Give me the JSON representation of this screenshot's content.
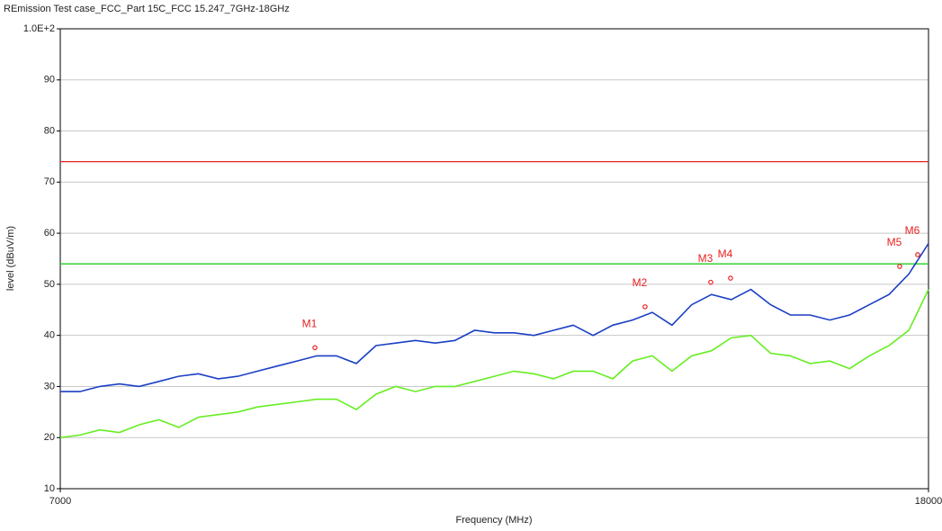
{
  "chart_data": {
    "type": "line",
    "title": "REmission Test case_FCC_Part 15C_FCC 15.247_7GHz-18GHz",
    "x_label": "Frequency (MHz)",
    "y_label": "level (dBuV/m)",
    "x": [
      7000,
      7250,
      7500,
      7750,
      8000,
      8250,
      8500,
      8750,
      9000,
      9250,
      9500,
      9750,
      10000,
      10250,
      10500,
      10750,
      11000,
      11250,
      11500,
      11750,
      12000,
      12250,
      12500,
      12750,
      13000,
      13250,
      13500,
      13750,
      14000,
      14250,
      14500,
      14750,
      15000,
      15250,
      15500,
      15750,
      16000,
      16250,
      16500,
      16750,
      17000,
      17250,
      17500,
      17750,
      18000
    ],
    "series": [
      {
        "color": "#1a3fc4",
        "values": [
          29,
          29,
          30,
          30.5,
          30,
          31,
          32,
          32.5,
          31.5,
          32,
          33,
          34,
          35,
          36,
          36,
          34.5,
          38,
          38.5,
          39,
          38.5,
          39,
          41,
          40.5,
          40.5,
          40,
          41,
          42,
          40,
          42,
          43,
          44.5,
          42,
          46,
          48,
          47,
          49,
          46,
          44,
          44,
          43,
          44,
          46,
          48,
          52,
          58
        ]
      },
      {
        "color": "#66ee22",
        "values": [
          20,
          20.5,
          21.5,
          21,
          22.5,
          23.5,
          22,
          24,
          24.5,
          25,
          26,
          26.5,
          27,
          27.5,
          27.5,
          25.5,
          28.5,
          30,
          29,
          30,
          30,
          31,
          32,
          33,
          32.5,
          31.5,
          33,
          33,
          31.5,
          35,
          36,
          33,
          36,
          37,
          39.5,
          40,
          36.5,
          36,
          34.5,
          35,
          33.5,
          36,
          38,
          41,
          49
        ]
      }
    ],
    "limit_lines": [
      {
        "value": 74,
        "color": "#e82020"
      },
      {
        "value": 54,
        "color": "#22cc22"
      }
    ],
    "markers": [
      {
        "label": "M1",
        "x": 10226,
        "y": 37.6
      },
      {
        "label": "M2",
        "x": 14409,
        "y": 45.6
      },
      {
        "label": "M3",
        "x": 15241,
        "y": 50.4
      },
      {
        "label": "M4",
        "x": 15492,
        "y": 51.2
      },
      {
        "label": "M5",
        "x": 17635,
        "y": 53.5
      },
      {
        "label": "M6",
        "x": 17863,
        "y": 55.8
      }
    ],
    "marker_color": "#e82020",
    "xlim": [
      7000,
      18000
    ],
    "xticks": [
      7000,
      18000
    ],
    "ylim": [
      10,
      100
    ],
    "yticks": [
      10,
      20,
      30,
      40,
      50,
      60,
      70,
      80,
      90,
      {
        "value": 100,
        "label": "1.0E+2"
      }
    ],
    "grid": true
  }
}
